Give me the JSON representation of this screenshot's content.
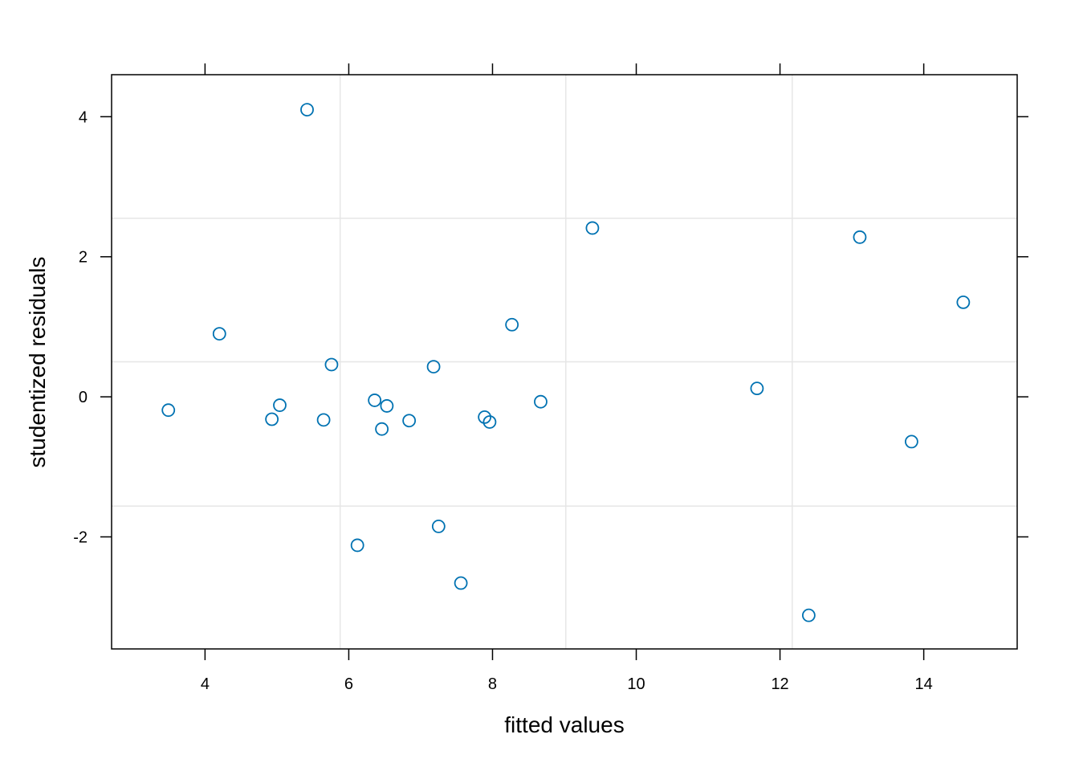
{
  "chart_data": {
    "type": "scatter",
    "title": "",
    "xlabel": "fitted values",
    "ylabel": "studentized residuals",
    "xlim": [
      2.7,
      15.3
    ],
    "ylim": [
      -3.6,
      4.6
    ],
    "xticks": [
      4,
      6,
      8,
      10,
      12,
      14
    ],
    "yticks": [
      -2,
      0,
      2,
      4
    ],
    "xtick_labels": [
      "4",
      "6",
      "8",
      "10",
      "12",
      "14"
    ],
    "ytick_labels": [
      "-2",
      "0",
      "2",
      "4"
    ],
    "grid": true,
    "grid_x": [
      5.88,
      9.02,
      12.17
    ],
    "grid_y": [
      -1.56,
      0.5,
      2.55
    ],
    "point_color": "#0072B2",
    "grid_color": "#e6e6e6",
    "points": [
      {
        "x": 3.49,
        "y": -0.19
      },
      {
        "x": 4.2,
        "y": 0.9
      },
      {
        "x": 4.93,
        "y": -0.32
      },
      {
        "x": 5.04,
        "y": -0.12
      },
      {
        "x": 5.42,
        "y": 4.1
      },
      {
        "x": 5.65,
        "y": -0.33
      },
      {
        "x": 5.76,
        "y": 0.46
      },
      {
        "x": 6.12,
        "y": -2.12
      },
      {
        "x": 6.36,
        "y": -0.05
      },
      {
        "x": 6.46,
        "y": -0.46
      },
      {
        "x": 6.53,
        "y": -0.13
      },
      {
        "x": 6.84,
        "y": -0.34
      },
      {
        "x": 7.18,
        "y": 0.43
      },
      {
        "x": 7.25,
        "y": -1.85
      },
      {
        "x": 7.56,
        "y": -2.66
      },
      {
        "x": 7.89,
        "y": -0.29
      },
      {
        "x": 7.96,
        "y": -0.36
      },
      {
        "x": 8.27,
        "y": 1.03
      },
      {
        "x": 8.67,
        "y": -0.07
      },
      {
        "x": 9.39,
        "y": 2.41
      },
      {
        "x": 11.68,
        "y": 0.12
      },
      {
        "x": 12.4,
        "y": -3.12
      },
      {
        "x": 13.11,
        "y": 2.28
      },
      {
        "x": 13.83,
        "y": -0.64
      },
      {
        "x": 14.55,
        "y": 1.35
      }
    ]
  }
}
